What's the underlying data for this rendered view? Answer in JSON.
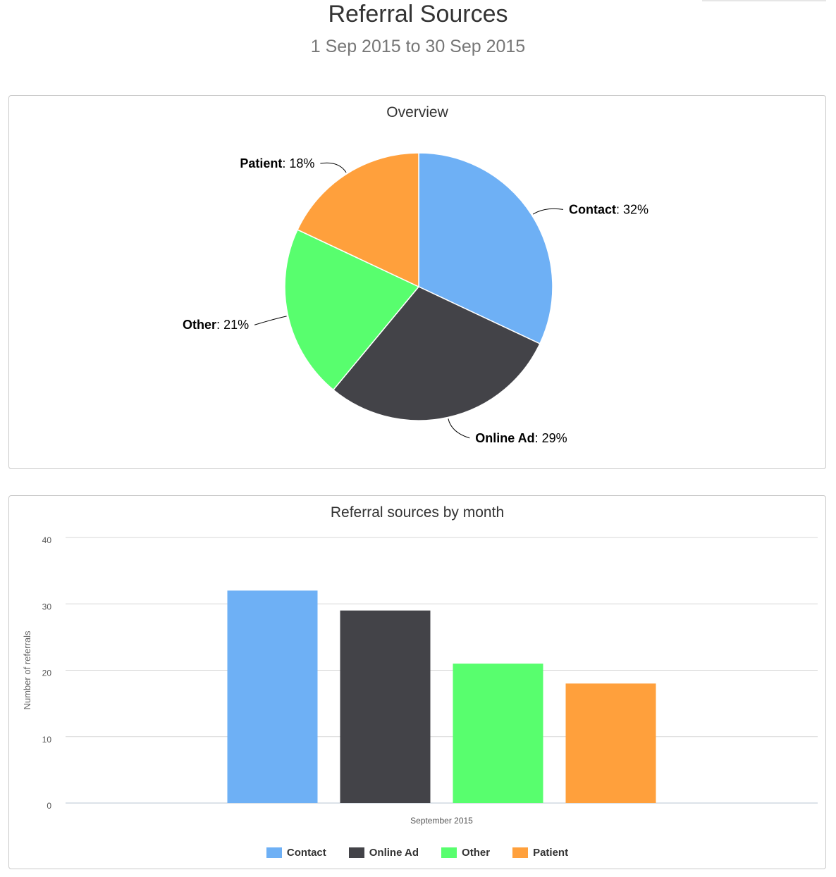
{
  "header": {
    "title": "Referral Sources",
    "subtitle": "1 Sep 2015 to 30 Sep 2015"
  },
  "colors": {
    "Contact": "#6eb0f5",
    "Online Ad": "#434348",
    "Other": "#58fe6e",
    "Patient": "#ffa03c"
  },
  "chart_data": [
    {
      "type": "pie",
      "title": "Overview",
      "slices": [
        {
          "label": "Contact",
          "value": 32,
          "display": "32%"
        },
        {
          "label": "Online Ad",
          "value": 29,
          "display": "29%"
        },
        {
          "label": "Other",
          "value": 21,
          "display": "21%"
        },
        {
          "label": "Patient",
          "value": 18,
          "display": "18%"
        }
      ]
    },
    {
      "type": "bar",
      "title": "Referral sources by month",
      "categories": [
        "September 2015"
      ],
      "series": [
        {
          "name": "Contact",
          "values": [
            32
          ]
        },
        {
          "name": "Online Ad",
          "values": [
            29
          ]
        },
        {
          "name": "Other",
          "values": [
            21
          ]
        },
        {
          "name": "Patient",
          "values": [
            18
          ]
        }
      ],
      "xlabel": "",
      "ylabel": "Number of referrals",
      "ylim": [
        0,
        40
      ],
      "yticks": [
        "0",
        "10",
        "20",
        "30",
        "40"
      ],
      "grid": true,
      "legend": "bottom-center"
    }
  ]
}
